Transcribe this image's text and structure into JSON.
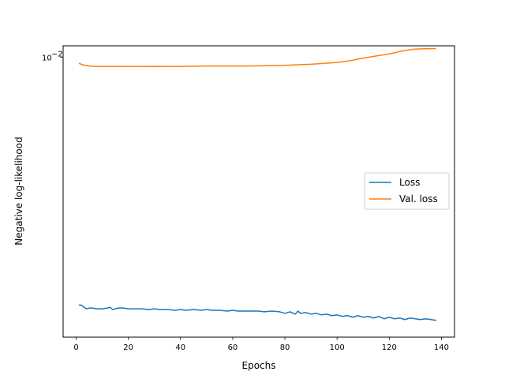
{
  "chart_data": {
    "type": "line",
    "title": "",
    "xlabel": "Epochs",
    "ylabel": "Negative log-likelihood",
    "yscale": "log",
    "xlim": [
      -5,
      145
    ],
    "ylim": [
      0.00193,
      0.0107
    ],
    "xticks": [
      0,
      20,
      40,
      60,
      80,
      100,
      120,
      140
    ],
    "xtick_labels": [
      "0",
      "20",
      "40",
      "60",
      "80",
      "100",
      "120",
      "140"
    ],
    "yticks": [
      0.01
    ],
    "ytick_labels": [
      "10",
      "−2"
    ],
    "grid": false,
    "legend_position": "center-right",
    "series": [
      {
        "name": "Loss",
        "color": "#1f77b4",
        "x": [
          1,
          2,
          3,
          4,
          5,
          6,
          8,
          10,
          12,
          13,
          14,
          16,
          18,
          20,
          22,
          25,
          28,
          30,
          32,
          35,
          38,
          40,
          42,
          45,
          48,
          50,
          52,
          55,
          58,
          60,
          62,
          65,
          68,
          70,
          72,
          75,
          78,
          80,
          82,
          84,
          85,
          86,
          88,
          90,
          92,
          94,
          96,
          98,
          100,
          102,
          104,
          106,
          108,
          110,
          112,
          114,
          116,
          118,
          120,
          122,
          124,
          126,
          128,
          130,
          132,
          134,
          136,
          138
        ],
        "y": [
          0.00233,
          0.00233,
          0.0023,
          0.00228,
          0.00229,
          0.00229,
          0.00228,
          0.00228,
          0.00229,
          0.0023,
          0.00227,
          0.00229,
          0.00229,
          0.00228,
          0.00228,
          0.00228,
          0.00227,
          0.00228,
          0.00227,
          0.00227,
          0.00226,
          0.00227,
          0.00226,
          0.00227,
          0.00226,
          0.00227,
          0.00226,
          0.00226,
          0.00225,
          0.00226,
          0.00225,
          0.00225,
          0.00225,
          0.00225,
          0.00224,
          0.00225,
          0.00224,
          0.00222,
          0.00224,
          0.00221,
          0.00225,
          0.00222,
          0.00223,
          0.00221,
          0.00222,
          0.0022,
          0.00221,
          0.00219,
          0.0022,
          0.00218,
          0.00219,
          0.00217,
          0.00219,
          0.00217,
          0.00218,
          0.00216,
          0.00218,
          0.00215,
          0.00217,
          0.00215,
          0.00216,
          0.00214,
          0.00216,
          0.00215,
          0.00214,
          0.00215,
          0.00214,
          0.00213
        ]
      },
      {
        "name": "Val. loss",
        "color": "#ff7f0e",
        "x": [
          1,
          3,
          5,
          7,
          10,
          15,
          20,
          25,
          30,
          35,
          40,
          45,
          50,
          55,
          60,
          65,
          70,
          75,
          80,
          85,
          90,
          95,
          100,
          105,
          110,
          115,
          120,
          125,
          130,
          135,
          138
        ],
        "y": [
          0.00965,
          0.00955,
          0.0095,
          0.00948,
          0.00948,
          0.00948,
          0.00947,
          0.00947,
          0.00948,
          0.00947,
          0.00947,
          0.00949,
          0.0095,
          0.0095,
          0.0095,
          0.0095,
          0.00951,
          0.00952,
          0.00954,
          0.00957,
          0.0096,
          0.00965,
          0.0097,
          0.0098,
          0.00995,
          0.01008,
          0.0102,
          0.01038,
          0.0105,
          0.01052,
          0.01053
        ]
      }
    ]
  }
}
